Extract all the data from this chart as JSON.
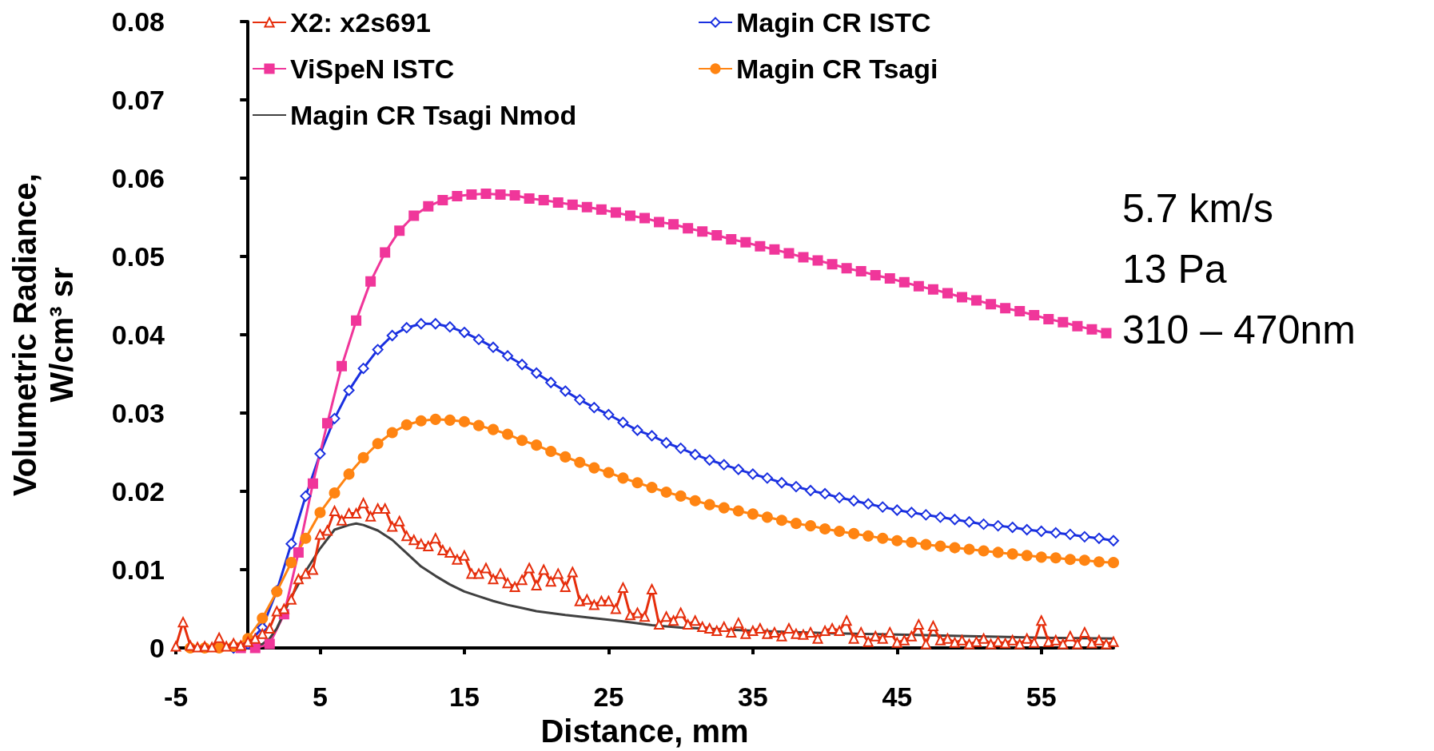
{
  "chart_data": {
    "type": "line",
    "xlabel": "Distance, mm",
    "ylabel": "Volumetric Radiance,\nW/cm³ sr",
    "annotations": [
      "5.7 km/s",
      "13 Pa",
      "310 – 470nm"
    ],
    "xlim": [
      -5,
      60
    ],
    "xticks": [
      -5,
      5,
      15,
      25,
      35,
      45,
      55
    ],
    "ylim": [
      0,
      0.08
    ],
    "yticks": [
      0,
      0.01,
      0.02,
      0.03,
      0.04,
      0.05,
      0.06,
      0.07,
      0.08
    ],
    "legend": "top",
    "grid": false,
    "series": [
      {
        "name": "X2: x2s691",
        "color": "#e62e0c",
        "marker": "triangle",
        "x": [
          -5,
          -4.5,
          -4,
          -3.5,
          -3,
          -2.5,
          -2,
          -1.5,
          -1,
          -0.5,
          0,
          0.5,
          1,
          1.5,
          2,
          2.5,
          3,
          3.5,
          4,
          4.5,
          5,
          5.5,
          6,
          6.5,
          7,
          7.5,
          8,
          8.5,
          9,
          9.5,
          10,
          10.5,
          11,
          11.5,
          12,
          12.5,
          13,
          13.5,
          14,
          14.5,
          15,
          15.5,
          16,
          16.5,
          17,
          17.5,
          18,
          18.5,
          19,
          19.5,
          20,
          20.5,
          21,
          21.5,
          22,
          22.5,
          23,
          23.5,
          24,
          24.5,
          25,
          25.5,
          26,
          26.5,
          27,
          27.5,
          28,
          28.5,
          29,
          29.5,
          30,
          30.5,
          31,
          31.5,
          32,
          32.5,
          33,
          33.5,
          34,
          34.5,
          35,
          35.5,
          36,
          36.5,
          37,
          37.5,
          38,
          38.5,
          39,
          39.5,
          40,
          40.5,
          41,
          41.5,
          42,
          42.5,
          43,
          43.5,
          44,
          44.5,
          45,
          45.5,
          46,
          46.5,
          47,
          47.5,
          48,
          48.5,
          49,
          49.5,
          50,
          50.5,
          51,
          51.5,
          52,
          52.5,
          53,
          53.5,
          54,
          54.5,
          55,
          55.5,
          56,
          56.5,
          57,
          57.5,
          58,
          58.5,
          59,
          59.5,
          60
        ],
        "values": [
          0.0002,
          0.0033,
          0.0003,
          0.0001,
          0.0002,
          0.0001,
          0.0013,
          0.0002,
          0.0006,
          0.0003,
          0.0008,
          0.0012,
          0.0018,
          0.0025,
          0.0047,
          0.005,
          0.0062,
          0.0088,
          0.0095,
          0.01,
          0.0145,
          0.015,
          0.0175,
          0.0163,
          0.0172,
          0.0172,
          0.0185,
          0.0168,
          0.0178,
          0.0178,
          0.0155,
          0.0162,
          0.0143,
          0.0138,
          0.0133,
          0.013,
          0.014,
          0.0125,
          0.0122,
          0.0113,
          0.0118,
          0.0095,
          0.0095,
          0.0102,
          0.0088,
          0.0095,
          0.0083,
          0.0078,
          0.0087,
          0.0102,
          0.008,
          0.01,
          0.0085,
          0.0095,
          0.0078,
          0.0097,
          0.006,
          0.0062,
          0.0055,
          0.006,
          0.006,
          0.005,
          0.0077,
          0.0042,
          0.0045,
          0.004,
          0.0075,
          0.003,
          0.004,
          0.0035,
          0.0045,
          0.003,
          0.0035,
          0.0027,
          0.0025,
          0.0022,
          0.0027,
          0.002,
          0.0032,
          0.0018,
          0.0022,
          0.0025,
          0.0018,
          0.002,
          0.0015,
          0.0025,
          0.0018,
          0.0017,
          0.002,
          0.0012,
          0.0022,
          0.0025,
          0.0022,
          0.0035,
          0.0012,
          0.002,
          0.0008,
          0.0015,
          0.0012,
          0.002,
          0.0007,
          0.001,
          0.0015,
          0.003,
          0.0005,
          0.0028,
          0.001,
          0.0012,
          0.0007,
          0.001,
          0.0005,
          0.0008,
          0.0012,
          0.0005,
          0.0008,
          0.0006,
          0.001,
          0.0005,
          0.0012,
          0.0007,
          0.0035,
          0.0008,
          0.001,
          0.0005,
          0.0015,
          0.0005,
          0.002,
          0.0006,
          0.001,
          0.0005,
          0.0008
        ]
      },
      {
        "name": "Magin CR ISTC",
        "color": "#1a30e0",
        "marker": "diamond",
        "x": [
          -1,
          0,
          1,
          2,
          3,
          4,
          5,
          6,
          7,
          8,
          9,
          10,
          11,
          12,
          13,
          14,
          15,
          16,
          17,
          18,
          19,
          20,
          21,
          22,
          23,
          24,
          25,
          26,
          27,
          28,
          29,
          30,
          31,
          32,
          33,
          34,
          35,
          36,
          37,
          38,
          39,
          40,
          41,
          42,
          43,
          44,
          45,
          46,
          47,
          48,
          49,
          50,
          51,
          52,
          53,
          54,
          55,
          56,
          57,
          58,
          59,
          60
        ],
        "values": [
          0,
          0.0005,
          0.0026,
          0.0073,
          0.0133,
          0.0194,
          0.0248,
          0.0293,
          0.0329,
          0.0357,
          0.0381,
          0.0399,
          0.0409,
          0.0414,
          0.0414,
          0.041,
          0.0403,
          0.0394,
          0.0384,
          0.0373,
          0.0362,
          0.0351,
          0.0339,
          0.0328,
          0.0317,
          0.0307,
          0.0298,
          0.0288,
          0.0278,
          0.0271,
          0.0262,
          0.0255,
          0.0247,
          0.024,
          0.0234,
          0.0228,
          0.0222,
          0.0217,
          0.0211,
          0.0206,
          0.0201,
          0.0197,
          0.0192,
          0.0188,
          0.0184,
          0.018,
          0.0176,
          0.0173,
          0.017,
          0.0167,
          0.0164,
          0.0161,
          0.0158,
          0.0156,
          0.0154,
          0.0151,
          0.0149,
          0.0147,
          0.0145,
          0.0142,
          0.014,
          0.0137
        ]
      },
      {
        "name": "ViSpeN ISTC",
        "color": "#f0369a",
        "marker": "square",
        "x": [
          -0.5,
          0.5,
          1.5,
          2.5,
          3.5,
          4.5,
          5.5,
          6.5,
          7.5,
          8.5,
          9.5,
          10.5,
          11.5,
          12.5,
          13.5,
          14.5,
          15.5,
          16.5,
          17.5,
          18.5,
          19.5,
          20.5,
          21.5,
          22.5,
          23.5,
          24.5,
          25.5,
          26.5,
          27.5,
          28.5,
          29.5,
          30.5,
          31.5,
          32.5,
          33.5,
          34.5,
          35.5,
          36.5,
          37.5,
          38.5,
          39.5,
          40.5,
          41.5,
          42.5,
          43.5,
          44.5,
          45.5,
          46.5,
          47.5,
          48.5,
          49.5,
          50.5,
          51.5,
          52.5,
          53.5,
          54.5,
          55.5,
          56.5,
          57.5,
          58.5,
          59.5
        ],
        "values": [
          0,
          0,
          0.0005,
          0.0043,
          0.0122,
          0.021,
          0.0287,
          0.036,
          0.0418,
          0.0468,
          0.0505,
          0.0533,
          0.0552,
          0.0564,
          0.0572,
          0.0577,
          0.0579,
          0.058,
          0.0579,
          0.0578,
          0.0574,
          0.0572,
          0.0569,
          0.0566,
          0.0563,
          0.056,
          0.0556,
          0.0552,
          0.0549,
          0.0544,
          0.0541,
          0.0536,
          0.0532,
          0.0527,
          0.0522,
          0.0518,
          0.0513,
          0.0509,
          0.0504,
          0.0499,
          0.0495,
          0.049,
          0.0485,
          0.0481,
          0.0476,
          0.0472,
          0.0467,
          0.0462,
          0.0458,
          0.0453,
          0.0448,
          0.0444,
          0.0439,
          0.0434,
          0.043,
          0.0425,
          0.042,
          0.0416,
          0.0411,
          0.0407,
          0.0402
        ]
      },
      {
        "name": "Magin CR Tsagi",
        "color": "#ff8412",
        "marker": "circle",
        "x": [
          -4,
          -3,
          -2,
          -1,
          0,
          1,
          2,
          3,
          4,
          5,
          6,
          7,
          8,
          9,
          10,
          11,
          12,
          13,
          14,
          15,
          16,
          17,
          18,
          19,
          20,
          21,
          22,
          23,
          24,
          25,
          26,
          27,
          28,
          29,
          30,
          31,
          32,
          33,
          34,
          35,
          36,
          37,
          38,
          39,
          40,
          41,
          42,
          43,
          44,
          45,
          46,
          47,
          48,
          49,
          50,
          51,
          52,
          53,
          54,
          55,
          56,
          57,
          58,
          59,
          60
        ],
        "values": [
          0,
          0,
          0,
          0.0002,
          0.0012,
          0.0038,
          0.0072,
          0.0109,
          0.014,
          0.0173,
          0.0198,
          0.0222,
          0.0243,
          0.0261,
          0.0275,
          0.0285,
          0.029,
          0.0292,
          0.0291,
          0.0289,
          0.0284,
          0.0279,
          0.0273,
          0.0265,
          0.0259,
          0.0251,
          0.0244,
          0.0237,
          0.023,
          0.0224,
          0.0217,
          0.0211,
          0.0205,
          0.0199,
          0.0194,
          0.0188,
          0.0183,
          0.0179,
          0.0175,
          0.0171,
          0.0167,
          0.0163,
          0.0159,
          0.0156,
          0.0152,
          0.0149,
          0.0146,
          0.0143,
          0.014,
          0.0137,
          0.0135,
          0.0132,
          0.013,
          0.0128,
          0.0126,
          0.0124,
          0.0122,
          0.012,
          0.0118,
          0.0116,
          0.0115,
          0.0113,
          0.0112,
          0.011,
          0.0109
        ]
      },
      {
        "name": "Magin CR Tsagi Nmod",
        "color": "#404040",
        "marker": "none",
        "x": [
          -1,
          0,
          1,
          1.5,
          2,
          3,
          4,
          5,
          6,
          7,
          7.5,
          8,
          9,
          10,
          11,
          12,
          13,
          14,
          15,
          16,
          17,
          18,
          19,
          20,
          22,
          24,
          26,
          28,
          30,
          35,
          40,
          45,
          50,
          55,
          60
        ],
        "values": [
          0,
          0.0001,
          0.0005,
          0.0012,
          0.0025,
          0.0065,
          0.0098,
          0.0127,
          0.0151,
          0.0157,
          0.0159,
          0.0157,
          0.015,
          0.0138,
          0.0121,
          0.0104,
          0.0092,
          0.0081,
          0.0072,
          0.0066,
          0.006,
          0.0055,
          0.0051,
          0.0047,
          0.0042,
          0.0038,
          0.0034,
          0.0029,
          0.0026,
          0.0022,
          0.0019,
          0.0017,
          0.0015,
          0.0013,
          0.0012
        ]
      }
    ]
  }
}
